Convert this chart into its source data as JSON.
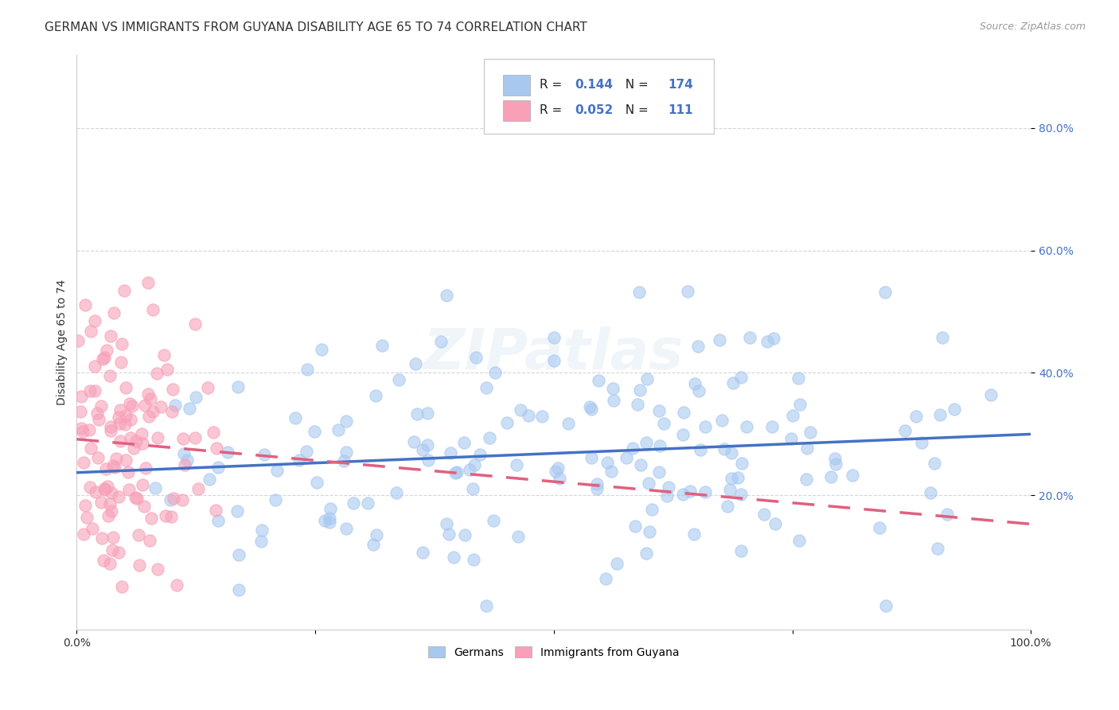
{
  "title": "GERMAN VS IMMIGRANTS FROM GUYANA DISABILITY AGE 65 TO 74 CORRELATION CHART",
  "source": "Source: ZipAtlas.com",
  "ylabel": "Disability Age 65 to 74",
  "xlim": [
    0.0,
    1.0
  ],
  "ylim": [
    -0.02,
    0.92
  ],
  "xticks": [
    0.0,
    0.25,
    0.5,
    0.75,
    1.0
  ],
  "xtick_labels": [
    "0.0%",
    "",
    "",
    "",
    "100.0%"
  ],
  "ytick_labels": [
    "20.0%",
    "40.0%",
    "60.0%",
    "80.0%"
  ],
  "yticks": [
    0.2,
    0.4,
    0.6,
    0.8
  ],
  "german_color": "#a8c8f0",
  "guyana_color": "#f8a0b8",
  "german_line_color": "#4472c4",
  "guyana_line_color": "#e06080",
  "watermark_color": "#b0cce8",
  "watermark": "ZIPatlas",
  "legend_R_german": "0.144",
  "legend_N_german": "174",
  "legend_R_guyana": "0.052",
  "legend_N_guyana": "111",
  "seed": 42,
  "german_N": 174,
  "guyana_N": 111,
  "title_fontsize": 11,
  "source_fontsize": 9,
  "axis_label_fontsize": 10,
  "tick_fontsize": 10,
  "watermark_fontsize": 52,
  "watermark_alpha": 0.18,
  "background_color": "#ffffff",
  "grid_color": "#cccccc",
  "grid_alpha": 0.8
}
